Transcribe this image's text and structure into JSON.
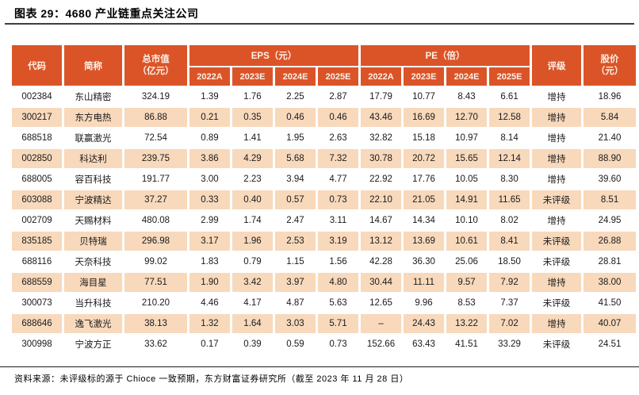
{
  "title": "图表 29：4680 产业链重点关注公司",
  "source_note": "资料来源：未评级标的源于 Chioce 一致预期，东方财富证券研究所（截至 2023 年 11 月 28 日）",
  "colors": {
    "header-bg": "#DB5428",
    "header-text": "#FDF1E8",
    "row-alt-bg": "#F8D9BC",
    "body-text": "#1A1A1A",
    "title-rule": "#3F3F3F",
    "footer-rule": "#1A1A1A"
  },
  "table": {
    "headers": {
      "code": "代码",
      "name": "简称",
      "market_cap_line1": "总市值",
      "market_cap_line2": "（亿元）",
      "eps_group": "EPS（元）",
      "pe_group": "PE（倍）",
      "years": [
        "2022A",
        "2023E",
        "2024E",
        "2025E"
      ],
      "rating": "评级",
      "price_line1": "股价",
      "price_line2": "（元）"
    },
    "rows": [
      {
        "code": "002384",
        "name": "东山精密",
        "cap": "324.19",
        "eps": [
          "1.39",
          "1.76",
          "2.25",
          "2.87"
        ],
        "pe": [
          "17.79",
          "10.77",
          "8.43",
          "6.61"
        ],
        "rating": "增持",
        "price": "18.96"
      },
      {
        "code": "300217",
        "name": "东方电热",
        "cap": "86.88",
        "eps": [
          "0.21",
          "0.35",
          "0.46",
          "0.46"
        ],
        "pe": [
          "43.46",
          "16.69",
          "12.70",
          "12.58"
        ],
        "rating": "增持",
        "price": "5.84"
      },
      {
        "code": "688518",
        "name": "联赢激光",
        "cap": "72.54",
        "eps": [
          "0.89",
          "1.41",
          "1.95",
          "2.63"
        ],
        "pe": [
          "32.82",
          "15.18",
          "10.97",
          "8.14"
        ],
        "rating": "增持",
        "price": "21.40"
      },
      {
        "code": "002850",
        "name": "科达利",
        "cap": "239.75",
        "eps": [
          "3.86",
          "4.29",
          "5.68",
          "7.32"
        ],
        "pe": [
          "30.78",
          "20.72",
          "15.65",
          "12.14"
        ],
        "rating": "增持",
        "price": "88.90"
      },
      {
        "code": "688005",
        "name": "容百科技",
        "cap": "191.77",
        "eps": [
          "3.00",
          "2.23",
          "3.94",
          "4.77"
        ],
        "pe": [
          "22.92",
          "17.76",
          "10.05",
          "8.30"
        ],
        "rating": "增持",
        "price": "39.60"
      },
      {
        "code": "603088",
        "name": "宁波精达",
        "cap": "37.27",
        "eps": [
          "0.33",
          "0.40",
          "0.57",
          "0.73"
        ],
        "pe": [
          "22.10",
          "21.05",
          "14.91",
          "11.65"
        ],
        "rating": "未评级",
        "price": "8.51"
      },
      {
        "code": "002709",
        "name": "天赐材料",
        "cap": "480.08",
        "eps": [
          "2.99",
          "1.74",
          "2.47",
          "3.11"
        ],
        "pe": [
          "14.67",
          "14.34",
          "10.10",
          "8.02"
        ],
        "rating": "增持",
        "price": "24.95"
      },
      {
        "code": "835185",
        "name": "贝特瑞",
        "cap": "296.98",
        "eps": [
          "3.17",
          "1.96",
          "2.53",
          "3.19"
        ],
        "pe": [
          "13.12",
          "13.69",
          "10.61",
          "8.41"
        ],
        "rating": "未评级",
        "price": "26.88"
      },
      {
        "code": "688116",
        "name": "天奈科技",
        "cap": "99.02",
        "eps": [
          "1.83",
          "0.79",
          "1.15",
          "1.56"
        ],
        "pe": [
          "42.28",
          "36.30",
          "25.06",
          "18.50"
        ],
        "rating": "未评级",
        "price": "28.81"
      },
      {
        "code": "688559",
        "name": "海目星",
        "cap": "77.51",
        "eps": [
          "1.90",
          "3.42",
          "3.97",
          "4.80"
        ],
        "pe": [
          "30.44",
          "11.11",
          "9.57",
          "7.92"
        ],
        "rating": "增持",
        "price": "38.00"
      },
      {
        "code": "300073",
        "name": "当升科技",
        "cap": "210.20",
        "eps": [
          "4.46",
          "4.17",
          "4.87",
          "5.63"
        ],
        "pe": [
          "12.65",
          "9.96",
          "8.53",
          "7.37"
        ],
        "rating": "未评级",
        "price": "41.50"
      },
      {
        "code": "688646",
        "name": "逸飞激光",
        "cap": "38.13",
        "eps": [
          "1.32",
          "1.64",
          "3.03",
          "5.71"
        ],
        "pe": [
          "–",
          "24.43",
          "13.22",
          "7.02"
        ],
        "rating": "增持",
        "price": "40.07"
      },
      {
        "code": "300998",
        "name": "宁波方正",
        "cap": "33.62",
        "eps": [
          "0.17",
          "0.39",
          "0.59",
          "0.73"
        ],
        "pe": [
          "152.66",
          "63.43",
          "41.51",
          "33.29"
        ],
        "rating": "未评级",
        "price": "24.51"
      }
    ]
  }
}
